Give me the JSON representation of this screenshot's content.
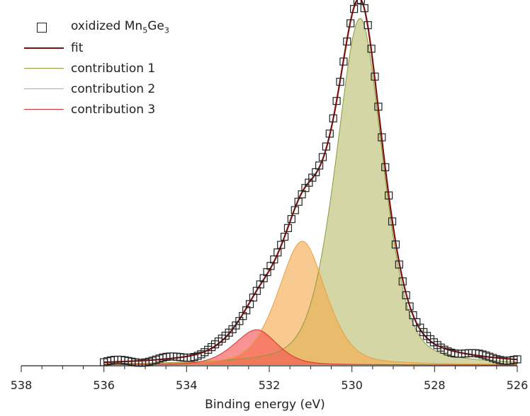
{
  "chart_data": {
    "type": "line",
    "title": "",
    "xlabel": "Binding energy (eV)",
    "ylabel": "",
    "xlim": [
      538,
      526
    ],
    "x_reversed": true,
    "xticks": [
      538,
      536,
      534,
      532,
      530,
      528,
      526
    ],
    "ylim": [
      0,
      1.0
    ],
    "grid": false,
    "legend_position": "top-left",
    "legend": [
      {
        "label": "oxidized Mn",
        "sub1": "5",
        "mid": "Ge",
        "sub2": "3",
        "marker": "square",
        "color": "#222222"
      },
      {
        "label": "fit",
        "marker": "line",
        "color": "#7a1010"
      },
      {
        "label": "contribution 1",
        "marker": "line",
        "color": "#8a9a3a"
      },
      {
        "label": "contribution 2",
        "marker": "line",
        "color": "#e8a040"
      },
      {
        "label": "contribution 3",
        "marker": "line",
        "color": "#d83030"
      }
    ],
    "series": [
      {
        "name": "contribution 1",
        "center": 529.8,
        "amplitude": 0.98,
        "sigma_left": 0.62,
        "sigma_right": 0.58,
        "fill": "#b9bf6e",
        "stroke": "#8a9a3a"
      },
      {
        "name": "contribution 2",
        "center": 531.2,
        "amplitude": 0.35,
        "sigma_left": 0.62,
        "sigma_right": 0.6,
        "fill": "#f5a94a",
        "stroke": "#e8a040"
      },
      {
        "name": "contribution 3",
        "center": 532.3,
        "amplitude": 0.1,
        "sigma_left": 0.58,
        "sigma_right": 0.52,
        "fill": "#f55050",
        "stroke": "#d83030"
      }
    ],
    "baseline_tail": {
      "center": 530.0,
      "amplitude": 0.018,
      "width": 3.4
    },
    "fit_color": "#7a1010",
    "data_points_count": 120,
    "data_x_range": [
      536,
      526
    ]
  }
}
